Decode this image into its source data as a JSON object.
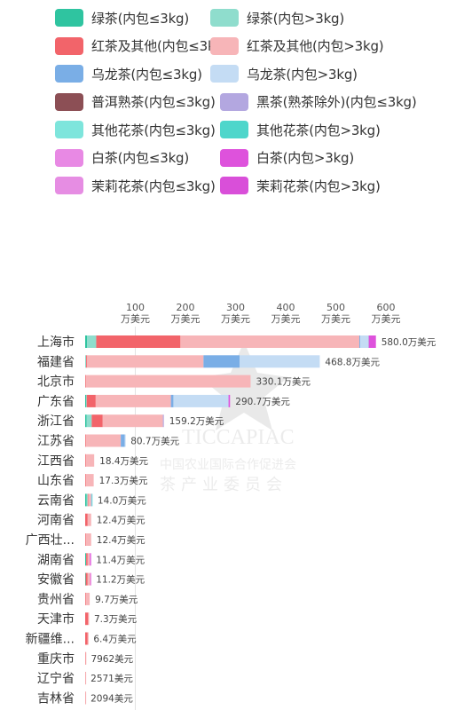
{
  "legend": [
    {
      "label": "绿茶(内包≤3kg)",
      "color": "#2fc4a0"
    },
    {
      "label": "绿茶(内包>3kg)",
      "color": "#8fddcd"
    },
    {
      "label": "红茶及其他(内包≤3kg)",
      "color": "#f2646a"
    },
    {
      "label": "红茶及其他(内包>3kg)",
      "color": "#f7b5b8"
    },
    {
      "label": "乌龙茶(内包≤3kg)",
      "color": "#7aaee6"
    },
    {
      "label": "乌龙茶(内包>3kg)",
      "color": "#c4dcf4"
    },
    {
      "label": "普洱熟茶(内包≤3kg)",
      "color": "#8c4f55"
    },
    {
      "label": "黑茶(熟茶除外)(内包≤3kg)",
      "color": "#b3a7e0"
    },
    {
      "label": "其他花茶(内包≤3kg)",
      "color": "#7ee5dc"
    },
    {
      "label": "其他花茶(内包>3kg)",
      "color": "#4ed6cb"
    },
    {
      "label": "白茶(内包≤3kg)",
      "color": "#e889e4"
    },
    {
      "label": "白茶(内包>3kg)",
      "color": "#de52dc"
    },
    {
      "label": "茉莉花茶(内包≤3kg)",
      "color": "#e68de3"
    },
    {
      "label": "茉莉花茶(内包>3kg)",
      "color": "#d94fd9"
    }
  ],
  "watermark": {
    "acronym": "TICCAPIAC",
    "org": "中国农业国际合作促进会",
    "committee": "茶产业委员会"
  },
  "chart_data": {
    "type": "bar",
    "orientation": "horizontal",
    "stacked": true,
    "unit_label": "万美元",
    "xlim": [
      0,
      600
    ],
    "xticks": [
      {
        "value": 100,
        "line1": "100",
        "line2": "万美元"
      },
      {
        "value": 200,
        "line1": "200",
        "line2": "万美元"
      },
      {
        "value": 300,
        "line1": "300",
        "line2": "万美元"
      },
      {
        "value": 400,
        "line1": "400",
        "line2": "万美元"
      },
      {
        "value": 500,
        "line1": "500",
        "line2": "万美元"
      },
      {
        "value": 600,
        "line1": "600",
        "line2": "万美元"
      }
    ],
    "grid": "vertical-at-100",
    "categories": [
      "上海市",
      "福建省",
      "北京市",
      "广东省",
      "浙江省",
      "江苏省",
      "江西省",
      "山东省",
      "云南省",
      "河南省",
      "广西壮...",
      "湖南省",
      "安徽省",
      "贵州省",
      "天津市",
      "新疆维...",
      "重庆市",
      "辽宁省",
      "吉林省"
    ],
    "total_labels": [
      "580.0万美元",
      "468.8万美元",
      "330.1万美元",
      "290.7万美元",
      "159.2万美元",
      "80.7万美元",
      "18.4万美元",
      "17.3万美元",
      "14.0万美元",
      "12.4万美元",
      "12.4万美元",
      "11.4万美元",
      "11.2万美元",
      "9.7万美元",
      "7.3万美元",
      "6.4万美元",
      "7962美元",
      "2571美元",
      "2094美元"
    ],
    "series": [
      {
        "name": "绿茶(内包≤3kg)",
        "color": "#2fc4a0",
        "values": [
          4,
          0,
          0,
          2,
          3,
          0,
          0,
          0,
          3,
          0,
          0,
          2,
          1,
          0,
          0,
          0,
          0,
          0,
          0
        ]
      },
      {
        "name": "绿茶(内包>3kg)",
        "color": "#8fddcd",
        "values": [
          18,
          2,
          0,
          1,
          10,
          0,
          0,
          0,
          2,
          0,
          0,
          0,
          0,
          0,
          0,
          0,
          0,
          0,
          0
        ]
      },
      {
        "name": "红茶及其他(内包≤3kg)",
        "color": "#f2646a",
        "values": [
          168,
          2,
          1,
          18,
          22,
          1,
          1,
          1,
          1,
          5,
          1,
          3,
          4,
          1,
          6,
          5,
          0.5,
          0.2,
          0.2
        ]
      },
      {
        "name": "红茶及其他(内包>3kg)",
        "color": "#f7b5b8",
        "values": [
          357,
          232,
          329,
          150,
          120,
          70,
          17,
          16,
          6,
          7,
          11,
          4,
          5,
          8,
          1,
          1,
          0.3,
          0.06,
          0.01
        ]
      },
      {
        "name": "乌龙茶(内包≤3kg)",
        "color": "#7aaee6",
        "values": [
          2,
          72,
          0,
          5,
          0,
          8,
          0,
          0,
          1,
          0,
          0,
          0,
          0,
          0,
          0,
          0,
          0,
          0,
          0
        ]
      },
      {
        "name": "乌龙茶(内包>3kg)",
        "color": "#c4dcf4",
        "values": [
          16,
          160,
          0,
          110,
          0,
          1,
          0,
          0,
          0,
          0,
          0,
          0,
          0,
          0,
          0,
          0,
          0,
          0,
          0
        ]
      },
      {
        "name": "普洱熟茶(内包≤3kg)",
        "color": "#8c4f55",
        "values": [
          0,
          0,
          0,
          0,
          0,
          0,
          0,
          0,
          0,
          0,
          0,
          0,
          0,
          0,
          0,
          0,
          0,
          0,
          0
        ]
      },
      {
        "name": "黑茶(熟茶除外)(内包≤3kg)",
        "color": "#b3a7e0",
        "values": [
          1,
          0,
          0,
          0,
          2,
          0,
          0,
          0,
          0,
          0,
          0,
          0,
          0,
          0,
          0,
          0,
          0,
          0,
          0
        ]
      },
      {
        "name": "其他花茶(内包≤3kg)",
        "color": "#7ee5dc",
        "values": [
          0,
          0,
          0,
          0,
          0,
          0,
          0,
          0,
          1,
          0,
          0,
          0,
          0,
          0,
          0,
          0,
          0,
          0,
          0
        ]
      },
      {
        "name": "其他花茶(内包>3kg)",
        "color": "#4ed6cb",
        "values": [
          0,
          0,
          0,
          0,
          0,
          0,
          0,
          0,
          0,
          0,
          0,
          0,
          0,
          0,
          0,
          0,
          0,
          0,
          0
        ]
      },
      {
        "name": "白茶(内包≤3kg)",
        "color": "#e889e4",
        "values": [
          0,
          0,
          0,
          0,
          0,
          0,
          0,
          0,
          0,
          0,
          0,
          1,
          0,
          0,
          0,
          0,
          0,
          0,
          0
        ]
      },
      {
        "name": "白茶(内包>3kg)",
        "color": "#de52dc",
        "values": [
          14,
          0,
          0,
          3,
          0,
          0,
          0,
          0,
          0,
          0,
          0,
          1,
          1,
          0,
          0,
          0,
          0,
          0,
          0
        ]
      },
      {
        "name": "茉莉花茶(内包≤3kg)",
        "color": "#e68de3",
        "values": [
          0,
          0,
          0,
          0,
          0,
          0,
          0,
          0,
          0,
          0,
          0,
          0,
          0,
          0,
          0,
          0,
          0,
          0,
          0
        ]
      },
      {
        "name": "茉莉花茶(内包>3kg)",
        "color": "#d94fd9",
        "values": [
          0,
          0,
          0,
          0,
          0,
          0,
          0,
          0,
          0,
          0,
          0,
          0,
          0,
          0,
          0,
          0,
          0,
          0,
          0
        ]
      }
    ]
  }
}
